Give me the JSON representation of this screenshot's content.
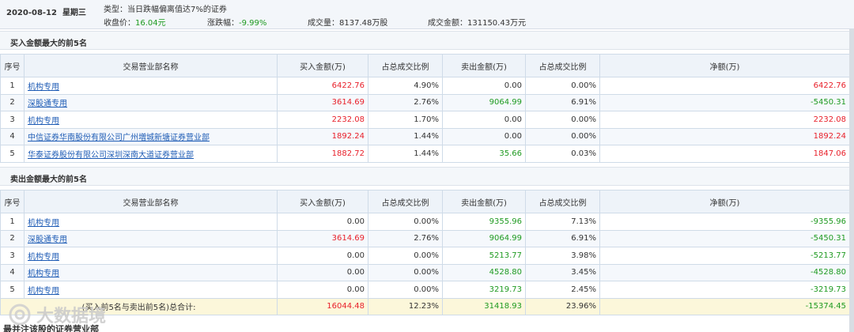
{
  "header": {
    "date": "2020-08-12",
    "weekday": "星期三",
    "type_label": "类型：",
    "type_value": "当日跌幅偏离值达7%的证券",
    "close_label": "收盘价：",
    "close_value": "16.04元",
    "change_label": "涨跌幅：",
    "change_value": "-9.99%",
    "volume_label": "成交量：",
    "volume_value": "8137.48万股",
    "amount_label": "成交金额：",
    "amount_value": "131150.43万元"
  },
  "columns": [
    "序号",
    "交易营业部名称",
    "买入金额(万)",
    "占总成交比例",
    "卖出金额(万)",
    "占总成交比例",
    "净额(万)"
  ],
  "buy_section": {
    "title": "买入金额最大的前5名",
    "rows": [
      {
        "no": "1",
        "name": "机构专用",
        "buy": "6422.76",
        "buy_pct": "4.90%",
        "sell": "0.00",
        "sell_pct": "0.00%",
        "net": "6422.76",
        "net_color": "red",
        "buy_color": "red",
        "sell_color": "black"
      },
      {
        "no": "2",
        "name": "深股通专用",
        "buy": "3614.69",
        "buy_pct": "2.76%",
        "sell": "9064.99",
        "sell_pct": "6.91%",
        "net": "-5450.31",
        "net_color": "green",
        "buy_color": "red",
        "sell_color": "green"
      },
      {
        "no": "3",
        "name": "机构专用",
        "buy": "2232.08",
        "buy_pct": "1.70%",
        "sell": "0.00",
        "sell_pct": "0.00%",
        "net": "2232.08",
        "net_color": "red",
        "buy_color": "red",
        "sell_color": "black"
      },
      {
        "no": "4",
        "name": "中信证券华南股份有限公司广州増城新塘证券营业部",
        "buy": "1892.24",
        "buy_pct": "1.44%",
        "sell": "0.00",
        "sell_pct": "0.00%",
        "net": "1892.24",
        "net_color": "red",
        "buy_color": "red",
        "sell_color": "black"
      },
      {
        "no": "5",
        "name": "华泰证券股份有限公司深圳深南大道证券营业部",
        "buy": "1882.72",
        "buy_pct": "1.44%",
        "sell": "35.66",
        "sell_pct": "0.03%",
        "net": "1847.06",
        "net_color": "red",
        "buy_color": "red",
        "sell_color": "green"
      }
    ]
  },
  "sell_section": {
    "title": "卖出金额最大的前5名",
    "rows": [
      {
        "no": "1",
        "name": "机构专用",
        "buy": "0.00",
        "buy_pct": "0.00%",
        "sell": "9355.96",
        "sell_pct": "7.13%",
        "net": "-9355.96",
        "net_color": "green",
        "buy_color": "black",
        "sell_color": "green"
      },
      {
        "no": "2",
        "name": "深股通专用",
        "buy": "3614.69",
        "buy_pct": "2.76%",
        "sell": "9064.99",
        "sell_pct": "6.91%",
        "net": "-5450.31",
        "net_color": "green",
        "buy_color": "red",
        "sell_color": "green"
      },
      {
        "no": "3",
        "name": "机构专用",
        "buy": "0.00",
        "buy_pct": "0.00%",
        "sell": "5213.77",
        "sell_pct": "3.98%",
        "net": "-5213.77",
        "net_color": "green",
        "buy_color": "black",
        "sell_color": "green"
      },
      {
        "no": "4",
        "name": "机构专用",
        "buy": "0.00",
        "buy_pct": "0.00%",
        "sell": "4528.80",
        "sell_pct": "3.45%",
        "net": "-4528.80",
        "net_color": "green",
        "buy_color": "black",
        "sell_color": "green"
      },
      {
        "no": "5",
        "name": "机构专用",
        "buy": "0.00",
        "buy_pct": "0.00%",
        "sell": "3219.73",
        "sell_pct": "2.45%",
        "net": "-3219.73",
        "net_color": "green",
        "buy_color": "black",
        "sell_color": "green"
      }
    ],
    "total": {
      "label": "(买入前5名与卖出前5名)总合计:",
      "buy": "16044.48",
      "buy_pct": "12.23%",
      "sell": "31418.93",
      "sell_pct": "23.96%",
      "net": "-15374.45"
    }
  },
  "footer_partial_title": "最并注该股的证券营业部",
  "watermark": {
    "text": "大数据境",
    "icon": "circle-logo-icon"
  },
  "colors": {
    "up": "#e8202a",
    "down": "#1e9a20",
    "link": "#1d5bb5"
  }
}
